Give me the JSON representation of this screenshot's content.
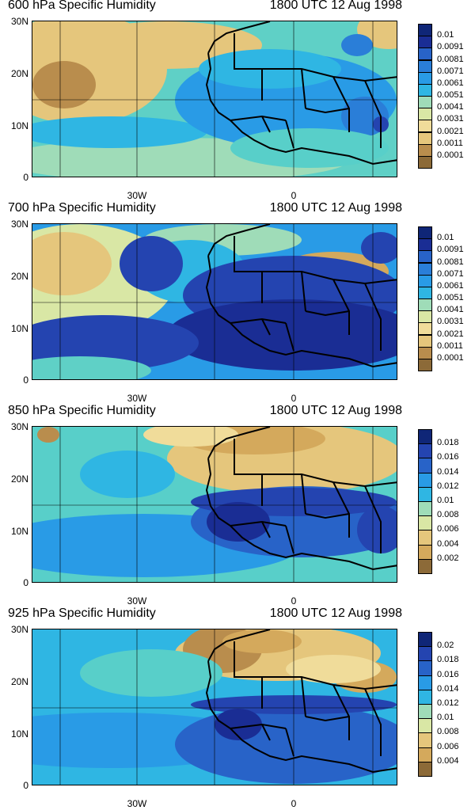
{
  "colors": {
    "moisture_scale": [
      "#8c6a38",
      "#b98d4d",
      "#d4a95c",
      "#e5c67c",
      "#f0dc9a",
      "#d9e7a5",
      "#9fdcb8",
      "#58cfc9",
      "#2fb6e3",
      "#299be6",
      "#2a7ed8",
      "#2863c8",
      "#2444b0",
      "#1a2d94",
      "#0f2677"
    ],
    "grid_line": "#000000",
    "coast_line": "#000000"
  },
  "panels": [
    {
      "title": "600 hPa Specific Humidity",
      "time": "1800 UTC 12 Aug 1998",
      "colorbar_labels": [
        "0.01",
        "0.0091",
        "0.0081",
        "0.0071",
        "0.0061",
        "0.0051",
        "0.0041",
        "0.0031",
        "0.0021",
        "0.0011",
        "0.0001"
      ],
      "colorbar_scale": [
        0,
        2,
        3,
        5,
        6,
        8,
        9,
        10,
        11,
        12,
        13,
        14
      ]
    },
    {
      "title": "700 hPa Specific Humidity",
      "time": "1800 UTC 12 Aug 1998",
      "colorbar_labels": [
        "0.01",
        "0.0091",
        "0.0081",
        "0.0071",
        "0.0061",
        "0.0051",
        "0.0041",
        "0.0031",
        "0.0021",
        "0.0011",
        "0.0001"
      ],
      "colorbar_scale": [
        0,
        2,
        3,
        5,
        6,
        8,
        9,
        10,
        11,
        12,
        13,
        14
      ]
    },
    {
      "title": "850 hPa Specific Humidity",
      "time": "1800 UTC 12 Aug 1998",
      "colorbar_labels": [
        "0.018",
        "0.016",
        "0.014",
        "0.012",
        "0.01",
        "0.008",
        "0.006",
        "0.004",
        "0.002"
      ],
      "colorbar_scale": [
        0,
        1,
        2,
        3,
        4,
        5,
        6,
        7,
        8,
        9,
        10,
        11,
        12,
        13,
        14
      ]
    },
    {
      "title": "925 hPa Specific Humidity",
      "time": "1800 UTC 12 Aug 1998",
      "colorbar_labels": [
        "0.02",
        "0.018",
        "0.016",
        "0.014",
        "0.012",
        "0.01",
        "0.008",
        "0.006",
        "0.004"
      ],
      "colorbar_scale": [
        0,
        1,
        2,
        3,
        4,
        5,
        6,
        7,
        8,
        9,
        10,
        11,
        12,
        13,
        14
      ]
    }
  ],
  "axes": {
    "y_ticks": [
      "30N",
      "20N",
      "10N",
      "0"
    ],
    "x_ticks": [
      "30W",
      "0"
    ]
  }
}
